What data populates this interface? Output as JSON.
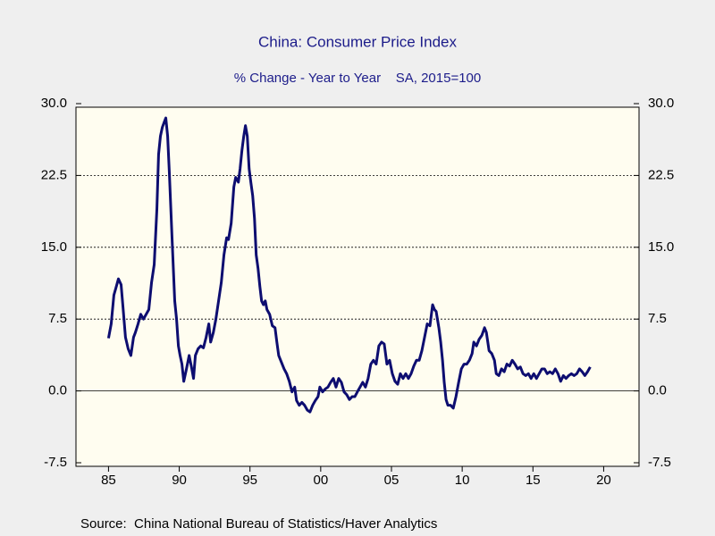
{
  "chart_data": {
    "type": "line",
    "title": "China: Consumer Price Index",
    "subtitle": "% Change - Year to Year    SA, 2015=100",
    "source": "Source:  China National Bureau of Statistics/Haver Analytics",
    "xlim": [
      1982.7,
      2022.5
    ],
    "xticks": [
      {
        "value": 1985,
        "label": "85"
      },
      {
        "value": 1990,
        "label": "90"
      },
      {
        "value": 1995,
        "label": "95"
      },
      {
        "value": 2000,
        "label": "00"
      },
      {
        "value": 2005,
        "label": "05"
      },
      {
        "value": 2010,
        "label": "10"
      },
      {
        "value": 2015,
        "label": "15"
      },
      {
        "value": 2020,
        "label": "20"
      }
    ],
    "ylim": [
      -7.5,
      30
    ],
    "yticks": [
      -7.5,
      {
        "value": 0,
        "label": "0.0"
      },
      7.5,
      {
        "value": 15,
        "label": "15.0"
      },
      22.5,
      {
        "value": 30,
        "label": "30.0"
      }
    ],
    "grid": true,
    "x": [
      1985.0,
      1985.19,
      1985.38,
      1985.57,
      1985.7,
      1985.89,
      1986.01,
      1986.2,
      1986.39,
      1986.58,
      1986.77,
      1986.9,
      1987.09,
      1987.28,
      1987.47,
      1987.66,
      1987.85,
      1988.04,
      1988.23,
      1988.42,
      1988.54,
      1988.67,
      1988.8,
      1988.92,
      1989.05,
      1989.18,
      1989.3,
      1989.49,
      1989.68,
      1989.81,
      1989.94,
      1990.06,
      1990.19,
      1990.32,
      1990.51,
      1990.7,
      1990.89,
      1991.01,
      1991.14,
      1991.33,
      1991.52,
      1991.71,
      1991.9,
      1992.09,
      1992.22,
      1992.41,
      1992.59,
      1992.78,
      1992.97,
      1993.16,
      1993.35,
      1993.48,
      1993.67,
      1993.86,
      1993.99,
      1994.18,
      1994.3,
      1994.43,
      1994.56,
      1994.68,
      1994.81,
      1994.94,
      1995.06,
      1995.19,
      1995.32,
      1995.44,
      1995.57,
      1995.7,
      1995.82,
      1995.95,
      1996.08,
      1996.2,
      1996.39,
      1996.58,
      1996.77,
      1996.9,
      1997.03,
      1997.22,
      1997.41,
      1997.59,
      1997.78,
      1997.97,
      1998.16,
      1998.29,
      1998.48,
      1998.67,
      1998.86,
      1999.05,
      1999.24,
      1999.43,
      1999.62,
      1999.81,
      1999.94,
      2000.13,
      2000.32,
      2000.51,
      2000.7,
      2000.89,
      2001.08,
      2001.27,
      2001.46,
      2001.65,
      2001.84,
      2002.03,
      2002.22,
      2002.41,
      2002.59,
      2002.78,
      2002.97,
      2003.16,
      2003.35,
      2003.54,
      2003.73,
      2003.92,
      2004.11,
      2004.3,
      2004.49,
      2004.68,
      2004.87,
      2005.06,
      2005.25,
      2005.44,
      2005.63,
      2005.82,
      2006.01,
      2006.2,
      2006.39,
      2006.58,
      2006.77,
      2006.96,
      2007.15,
      2007.34,
      2007.53,
      2007.72,
      2007.91,
      2008.04,
      2008.16,
      2008.35,
      2008.48,
      2008.61,
      2008.73,
      2008.86,
      2008.99,
      2009.18,
      2009.37,
      2009.56,
      2009.75,
      2009.94,
      2010.13,
      2010.32,
      2010.51,
      2010.7,
      2010.82,
      2011.01,
      2011.2,
      2011.39,
      2011.58,
      2011.71,
      2011.9,
      2012.09,
      2012.28,
      2012.41,
      2012.59,
      2012.78,
      2012.97,
      2013.16,
      2013.35,
      2013.54,
      2013.73,
      2013.92,
      2014.11,
      2014.3,
      2014.49,
      2014.68,
      2014.87,
      2015.06,
      2015.25,
      2015.44,
      2015.63,
      2015.82,
      2016.01,
      2016.2,
      2016.39,
      2016.58,
      2016.77,
      2016.96,
      2017.15,
      2017.34,
      2017.53,
      2017.72,
      2017.91,
      2018.1,
      2018.29,
      2018.48,
      2018.67,
      2018.86,
      2019.05
    ],
    "series": [
      {
        "name": "CPI",
        "color": "#0d0d70",
        "values": [
          5.5,
          7,
          10,
          11,
          11.7,
          11.1,
          9,
          5.6,
          4.4,
          3.7,
          5.6,
          6.1,
          7,
          8,
          7.5,
          8,
          8.5,
          11.3,
          13.2,
          19,
          24.7,
          26.6,
          27.5,
          28,
          28.5,
          26.6,
          22.8,
          16,
          9.4,
          7.5,
          4.7,
          3.7,
          2.8,
          1,
          2.3,
          3.7,
          2.3,
          1.3,
          3.7,
          4.4,
          4.7,
          4.5,
          5.6,
          7,
          5.1,
          6.1,
          7.5,
          9.4,
          11.3,
          14.2,
          16,
          15.8,
          17.5,
          21.3,
          22.3,
          21.8,
          23.2,
          25.1,
          26.6,
          27.7,
          26.6,
          23.2,
          21.8,
          20.4,
          18,
          14.2,
          12.8,
          10.9,
          9.4,
          9,
          9.4,
          8.5,
          8,
          6.8,
          6.6,
          5.1,
          3.7,
          3,
          2.3,
          1.8,
          1,
          -0.1,
          0.4,
          -1,
          -1.5,
          -1.2,
          -1.5,
          -2,
          -2.2,
          -1.5,
          -1,
          -0.6,
          0.4,
          -0.1,
          0.2,
          0.4,
          0.9,
          1.3,
          0.4,
          1.3,
          0.9,
          -0.1,
          -0.4,
          -0.9,
          -0.6,
          -0.6,
          -0.1,
          0.4,
          0.9,
          0.4,
          1.3,
          2.8,
          3.2,
          2.8,
          4.7,
          5.1,
          4.9,
          2.8,
          3.2,
          1.8,
          1,
          0.7,
          1.8,
          1.3,
          1.8,
          1.3,
          1.8,
          2.6,
          3.2,
          3.2,
          4.2,
          5.6,
          7,
          6.8,
          9,
          8.5,
          8.3,
          6.6,
          5.1,
          3.2,
          0.9,
          -0.9,
          -1.5,
          -1.5,
          -1.8,
          -0.6,
          0.9,
          2.3,
          2.8,
          2.8,
          3.2,
          3.9,
          5.1,
          4.7,
          5.4,
          5.8,
          6.6,
          6.1,
          4.2,
          3.9,
          3.2,
          1.8,
          1.6,
          2.3,
          2,
          2.8,
          2.6,
          3.2,
          2.8,
          2.3,
          2.5,
          1.8,
          1.6,
          1.8,
          1.3,
          1.8,
          1.3,
          1.8,
          2.3,
          2.3,
          1.8,
          2,
          1.8,
          2.3,
          1.8,
          1,
          1.6,
          1.3,
          1.6,
          1.8,
          1.6,
          1.8,
          2.3,
          2,
          1.6,
          2,
          2.5
        ]
      }
    ]
  }
}
